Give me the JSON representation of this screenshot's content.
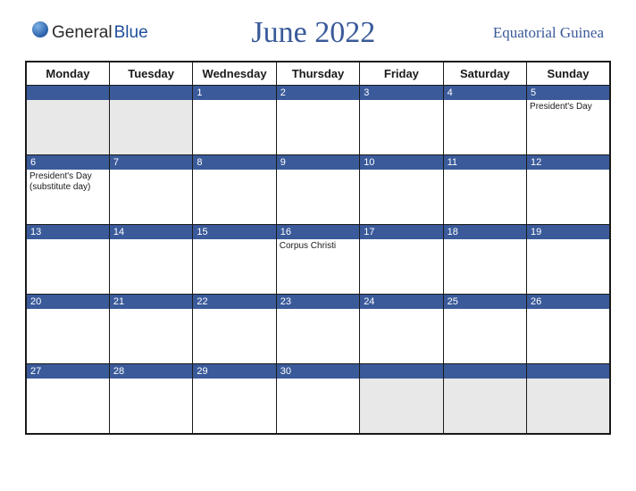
{
  "logo": {
    "general": "General",
    "blue": "Blue"
  },
  "title": "June 2022",
  "region": "Equatorial Guinea",
  "colors": {
    "header_bg": "#3a5a9a",
    "border": "#1a1a1a",
    "dim_bg": "#e8e8e8",
    "title_color": "#3a5a9a"
  },
  "day_headers": [
    "Monday",
    "Tuesday",
    "Wednesday",
    "Thursday",
    "Friday",
    "Saturday",
    "Sunday"
  ],
  "weeks": [
    [
      {
        "num": "",
        "dim": true,
        "event": ""
      },
      {
        "num": "",
        "dim": true,
        "event": ""
      },
      {
        "num": "1",
        "dim": false,
        "event": ""
      },
      {
        "num": "2",
        "dim": false,
        "event": ""
      },
      {
        "num": "3",
        "dim": false,
        "event": ""
      },
      {
        "num": "4",
        "dim": false,
        "event": ""
      },
      {
        "num": "5",
        "dim": false,
        "event": "President's Day"
      }
    ],
    [
      {
        "num": "6",
        "dim": false,
        "event": "President's Day (substitute day)"
      },
      {
        "num": "7",
        "dim": false,
        "event": ""
      },
      {
        "num": "8",
        "dim": false,
        "event": ""
      },
      {
        "num": "9",
        "dim": false,
        "event": ""
      },
      {
        "num": "10",
        "dim": false,
        "event": ""
      },
      {
        "num": "11",
        "dim": false,
        "event": ""
      },
      {
        "num": "12",
        "dim": false,
        "event": ""
      }
    ],
    [
      {
        "num": "13",
        "dim": false,
        "event": ""
      },
      {
        "num": "14",
        "dim": false,
        "event": ""
      },
      {
        "num": "15",
        "dim": false,
        "event": ""
      },
      {
        "num": "16",
        "dim": false,
        "event": "Corpus Christi"
      },
      {
        "num": "17",
        "dim": false,
        "event": ""
      },
      {
        "num": "18",
        "dim": false,
        "event": ""
      },
      {
        "num": "19",
        "dim": false,
        "event": ""
      }
    ],
    [
      {
        "num": "20",
        "dim": false,
        "event": ""
      },
      {
        "num": "21",
        "dim": false,
        "event": ""
      },
      {
        "num": "22",
        "dim": false,
        "event": ""
      },
      {
        "num": "23",
        "dim": false,
        "event": ""
      },
      {
        "num": "24",
        "dim": false,
        "event": ""
      },
      {
        "num": "25",
        "dim": false,
        "event": ""
      },
      {
        "num": "26",
        "dim": false,
        "event": ""
      }
    ],
    [
      {
        "num": "27",
        "dim": false,
        "event": ""
      },
      {
        "num": "28",
        "dim": false,
        "event": ""
      },
      {
        "num": "29",
        "dim": false,
        "event": ""
      },
      {
        "num": "30",
        "dim": false,
        "event": ""
      },
      {
        "num": "",
        "dim": true,
        "event": ""
      },
      {
        "num": "",
        "dim": true,
        "event": ""
      },
      {
        "num": "",
        "dim": true,
        "event": ""
      }
    ]
  ]
}
